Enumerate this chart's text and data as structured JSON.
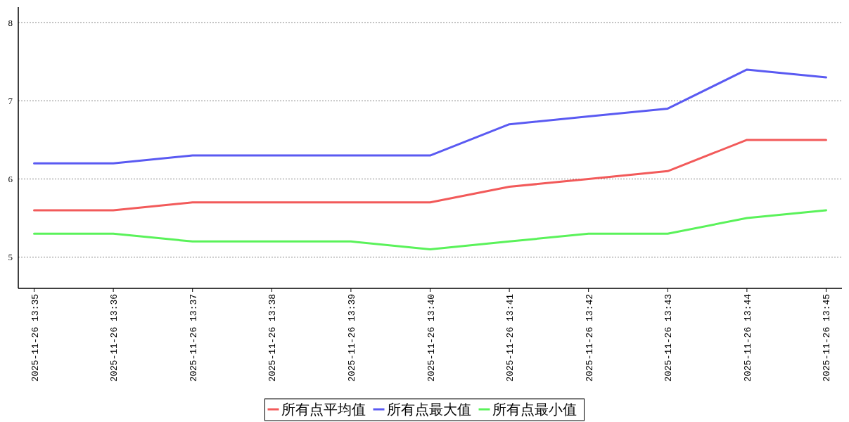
{
  "chart_data": {
    "type": "line",
    "categories": [
      "2025-11-26 13:35",
      "2025-11-26 13:36",
      "2025-11-26 13:37",
      "2025-11-26 13:38",
      "2025-11-26 13:39",
      "2025-11-26 13:40",
      "2025-11-26 13:41",
      "2025-11-26 13:42",
      "2025-11-26 13:43",
      "2025-11-26 13:44",
      "2025-11-26 13:45"
    ],
    "series": [
      {
        "name": "所有点平均值",
        "color": "#f25a5a",
        "values": [
          5.6,
          5.6,
          5.7,
          5.7,
          5.7,
          5.7,
          5.9,
          6.0,
          6.1,
          6.5,
          6.5
        ]
      },
      {
        "name": "所有点最大值",
        "color": "#5a5af2",
        "values": [
          6.2,
          6.2,
          6.3,
          6.3,
          6.3,
          6.3,
          6.7,
          6.8,
          6.9,
          7.4,
          7.3
        ]
      },
      {
        "name": "所有点最小值",
        "color": "#5af25a",
        "values": [
          5.3,
          5.3,
          5.2,
          5.2,
          5.2,
          5.1,
          5.2,
          5.3,
          5.3,
          5.5,
          5.6
        ]
      }
    ],
    "ylim": [
      4.6,
      8.2
    ],
    "yticks": [
      5,
      6,
      7,
      8
    ],
    "grid": "y",
    "legend": "bottom",
    "marker": "none",
    "line_style": "solid"
  }
}
